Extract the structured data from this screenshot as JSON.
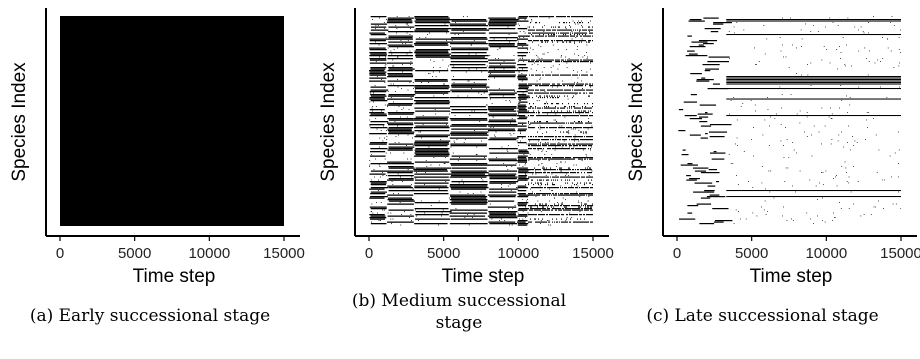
{
  "chart_data": [
    {
      "type": "heatmap",
      "xlabel": "Time step",
      "ylabel": "Species Index",
      "xticks": [
        0,
        5000,
        10000,
        15000
      ],
      "xtick_labels": [
        "0",
        "5000",
        "10000",
        "15000"
      ],
      "xlim": [
        0,
        15000
      ],
      "caption": "(a) Early successional stage",
      "pattern": "fully-occupied"
    },
    {
      "type": "heatmap",
      "xlabel": "Time step",
      "ylabel": "Species Index",
      "xticks": [
        0,
        5000,
        10000,
        15000
      ],
      "xtick_labels": [
        "0",
        "5000",
        "10000",
        "15000"
      ],
      "xlim": [
        0,
        15000
      ],
      "caption_lines": [
        "(b) Medium successional",
        "stage"
      ],
      "pattern": "dense-turnover"
    },
    {
      "type": "heatmap",
      "xlabel": "Time step",
      "ylabel": "Species Index",
      "xticks": [
        0,
        5000,
        10000,
        15000
      ],
      "xtick_labels": [
        "0",
        "5000",
        "10000",
        "15000"
      ],
      "xlim": [
        0,
        15000
      ],
      "caption": "(c) Late successional stage",
      "pattern": "sparse-persistent"
    }
  ]
}
